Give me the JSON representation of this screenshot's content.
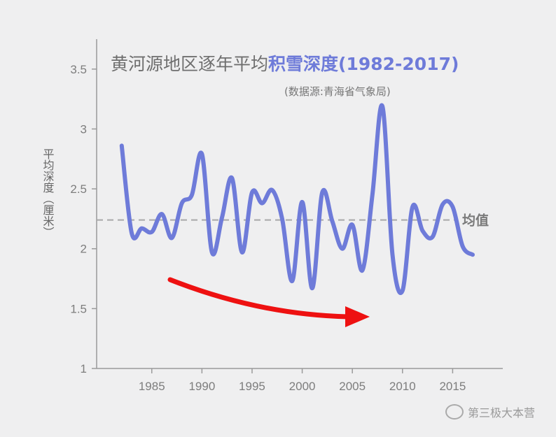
{
  "chart_data": {
    "type": "line",
    "title_part1": "黄河源地区逐年平均",
    "title_part2": "积雪深度(1982-2017)",
    "source": "(数据源:青海省气象局)",
    "ylabel": "平均深度（厘米）",
    "mean_label": "均值",
    "mean_value": 2.24,
    "xlim": [
      1979.5,
      2020
    ],
    "ylim": [
      1,
      3.75
    ],
    "x_ticks": [
      "1985",
      "1990",
      "1995",
      "2000",
      "2005",
      "2010",
      "2015"
    ],
    "y_ticks": [
      "1",
      "1.5",
      "2",
      "2.5",
      "3",
      "3.5"
    ],
    "series_color": "#6e7bd9",
    "mean_color": "#a8a8a8",
    "arrow_color": "#ee1111",
    "title_color_1": "#6f6f6f",
    "title_color_2": "#6e7bd9",
    "x": [
      1982,
      1983,
      1984,
      1985,
      1986,
      1987,
      1988,
      1989,
      1990,
      1991,
      1992,
      1993,
      1994,
      1995,
      1996,
      1997,
      1998,
      1999,
      2000,
      2001,
      2002,
      2003,
      2004,
      2005,
      2006,
      2007,
      2008,
      2009,
      2010,
      2011,
      2012,
      2013,
      2014,
      2015,
      2016,
      2017
    ],
    "values": [
      2.86,
      2.13,
      2.17,
      2.14,
      2.29,
      2.09,
      2.38,
      2.45,
      2.79,
      1.97,
      2.26,
      2.59,
      1.97,
      2.47,
      2.38,
      2.49,
      2.25,
      1.73,
      2.39,
      1.67,
      2.47,
      2.23,
      2.0,
      2.2,
      1.82,
      2.45,
      3.19,
      1.95,
      1.65,
      2.35,
      2.15,
      2.1,
      2.37,
      2.35,
      2.02,
      1.95
    ]
  },
  "watermark": "第三极大本营",
  "watermark_icon": "wechat-icon"
}
